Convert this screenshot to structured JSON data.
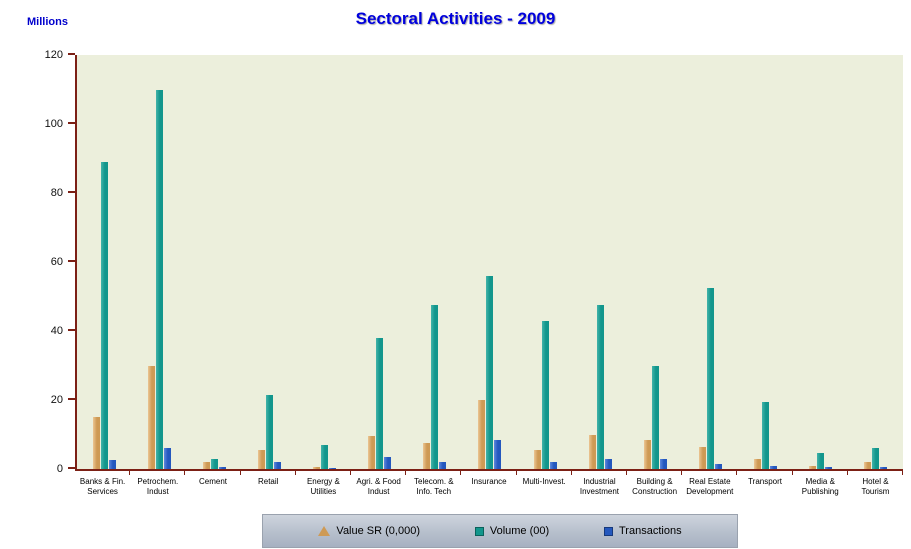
{
  "chart_data": {
    "type": "bar",
    "title": "Sectoral Activities - 2009",
    "ylabel": "Millions",
    "xlabel": "",
    "ylim": [
      0,
      120
    ],
    "yticks": [
      0,
      20,
      40,
      60,
      80,
      100,
      120
    ],
    "grid": false,
    "legend_position": "bottom",
    "categories": [
      "Banks & Fin.\nServices",
      "Petrochem.\nIndust",
      "Cement",
      "Retail",
      "Energy &\nUtilities",
      "Agri. & Food\nIndust",
      "Telecom. &\nInfo. Tech",
      "Insurance",
      "Multi-Invest.",
      "Industrial\nInvestment",
      "Building &\nConstruction",
      "Real Estate\nDevelopment",
      "Transport",
      "Media &\nPublishing",
      "Hotel &\nTourism"
    ],
    "series": [
      {
        "name": "Value SR (0,000)",
        "marker": "triangle",
        "color": "#ce9a55",
        "color_light": "#ecc693",
        "values": [
          15,
          30,
          2,
          5.5,
          0.5,
          9.5,
          7.5,
          20,
          5.5,
          10,
          8.5,
          6.5,
          3,
          1,
          2
        ]
      },
      {
        "name": "Volume (00)",
        "marker": "square",
        "color": "#12968c",
        "color_light": "#43b4aa",
        "values": [
          89,
          110,
          3,
          21.5,
          7,
          38,
          47.5,
          56,
          43,
          47.5,
          30,
          52.5,
          19.5,
          4.5,
          6
        ]
      },
      {
        "name": "Transactions",
        "marker": "square",
        "color": "#2458be",
        "color_light": "#5d87dd",
        "values": [
          2.5,
          6,
          0.5,
          2,
          0.3,
          3.5,
          2,
          8.5,
          2,
          3,
          3,
          1.5,
          1,
          0.5,
          0.5
        ]
      }
    ]
  },
  "colors": {
    "axis": "#7c2015",
    "plot_background": "#ecefdc",
    "title": "#0000dd",
    "legend_background": "#b6bfcc"
  }
}
